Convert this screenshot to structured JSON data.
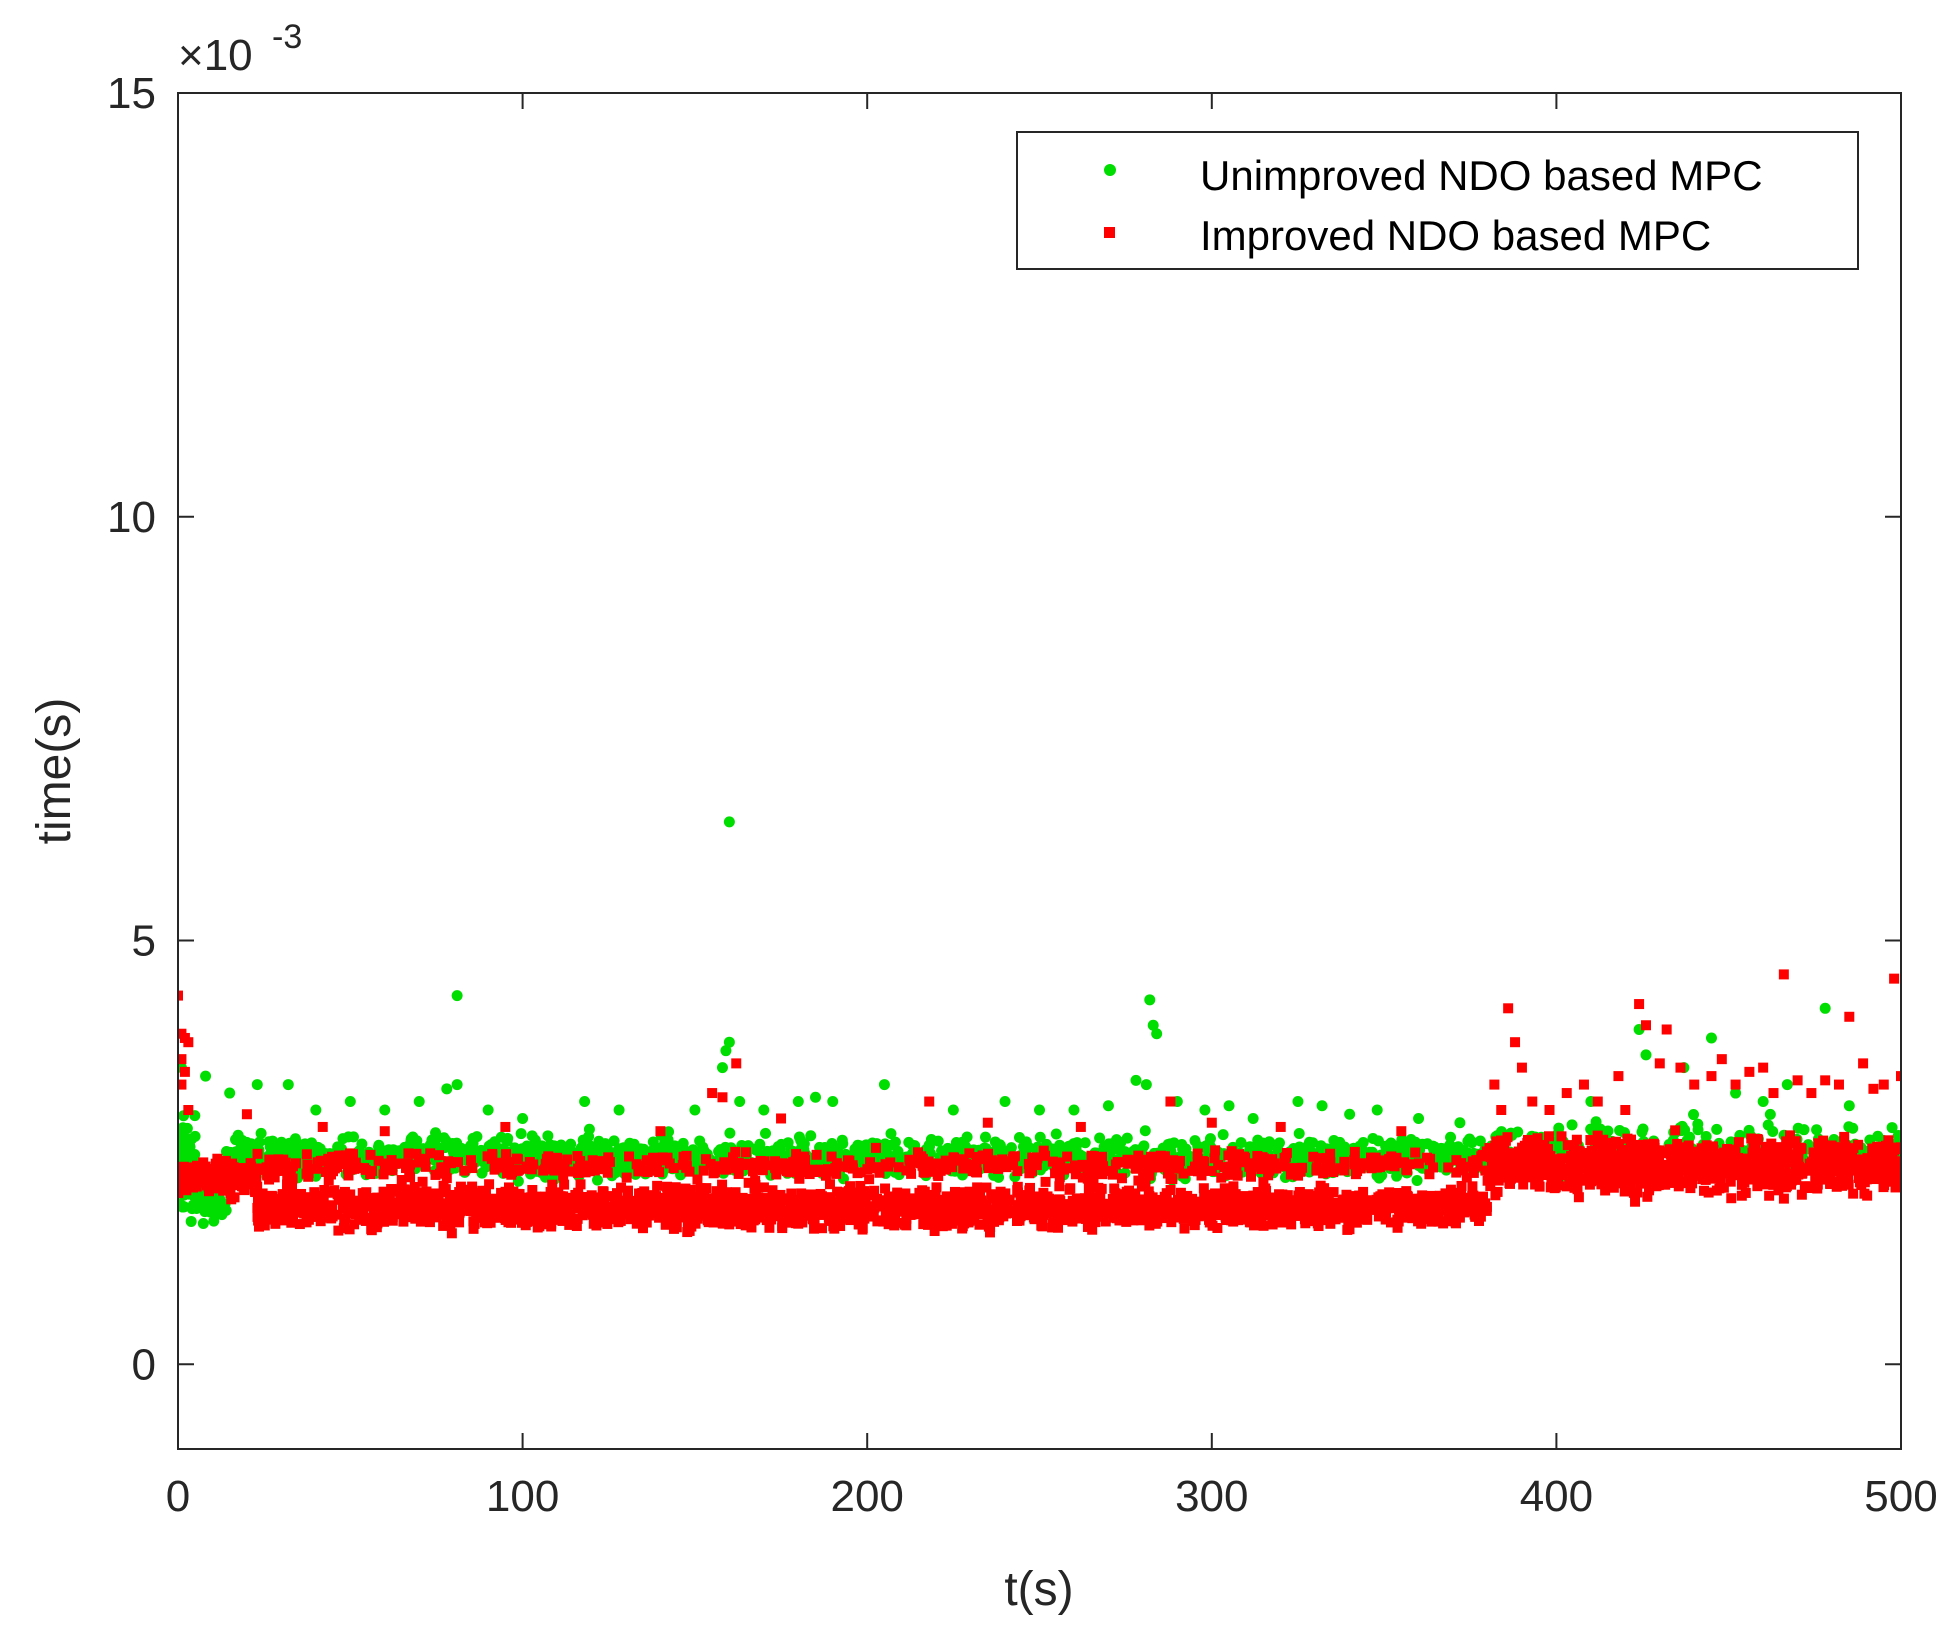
{
  "chart_data": {
    "type": "scatter",
    "xlabel": "t(s)",
    "ylabel": "time(s)",
    "exponent_label": {
      "base": "×10",
      "power": "-3"
    },
    "xlim": [
      0,
      500
    ],
    "ylim": [
      -1,
      15
    ],
    "x_ticks": [
      {
        "value": 0,
        "label": "0"
      },
      {
        "value": 100,
        "label": "100"
      },
      {
        "value": 200,
        "label": "200"
      },
      {
        "value": 300,
        "label": "300"
      },
      {
        "value": 400,
        "label": "400"
      },
      {
        "value": 500,
        "label": "500"
      }
    ],
    "y_ticks": [
      {
        "value": 0,
        "label": "0"
      },
      {
        "value": 5,
        "label": "5"
      },
      {
        "value": 10,
        "label": "10"
      },
      {
        "value": 15,
        "label": "15"
      }
    ],
    "grid": false,
    "legend_position": "top-right",
    "series": [
      {
        "name": "Unimproved NDO based MPC",
        "color": "#00dd00",
        "marker": "circle",
        "segments": [
          {
            "x_range": [
              0,
              5
            ],
            "center": 2.3,
            "spread": 0.55,
            "count": 70
          },
          {
            "x_range": [
              5,
              14
            ],
            "center": 1.95,
            "spread": 0.25,
            "count": 50
          },
          {
            "x_range": [
              14,
              380
            ],
            "center": 2.45,
            "spread": 0.22,
            "count": 1400
          },
          {
            "x_range": [
              380,
              500
            ],
            "center": 2.55,
            "spread": 0.28,
            "count": 220
          }
        ],
        "outliers": [
          [
            1,
            3.5
          ],
          [
            8,
            3.4
          ],
          [
            15,
            3.2
          ],
          [
            23,
            3.3
          ],
          [
            32,
            3.3
          ],
          [
            40,
            3.0
          ],
          [
            50,
            3.1
          ],
          [
            60,
            3.0
          ],
          [
            70,
            3.1
          ],
          [
            78,
            3.25
          ],
          [
            81,
            4.35
          ],
          [
            81,
            3.3
          ],
          [
            90,
            3.0
          ],
          [
            100,
            2.9
          ],
          [
            118,
            3.1
          ],
          [
            128,
            3.0
          ],
          [
            150,
            3.0
          ],
          [
            158,
            3.5
          ],
          [
            159,
            3.7
          ],
          [
            160,
            3.8
          ],
          [
            160,
            6.4
          ],
          [
            163,
            3.1
          ],
          [
            170,
            3.0
          ],
          [
            180,
            3.1
          ],
          [
            185,
            3.15
          ],
          [
            190,
            3.1
          ],
          [
            205,
            3.3
          ],
          [
            225,
            3.0
          ],
          [
            240,
            3.1
          ],
          [
            250,
            3.0
          ],
          [
            260,
            3.0
          ],
          [
            270,
            3.05
          ],
          [
            278,
            3.35
          ],
          [
            281,
            3.3
          ],
          [
            282,
            4.3
          ],
          [
            283,
            4.0
          ],
          [
            284,
            3.9
          ],
          [
            290,
            3.1
          ],
          [
            298,
            3.0
          ],
          [
            305,
            3.05
          ],
          [
            312,
            2.9
          ],
          [
            325,
            3.1
          ],
          [
            332,
            3.05
          ],
          [
            340,
            2.95
          ],
          [
            348,
            3.0
          ],
          [
            360,
            2.9
          ],
          [
            372,
            2.85
          ],
          [
            410,
            3.1
          ],
          [
            424,
            3.95
          ],
          [
            426,
            3.65
          ],
          [
            437,
            3.5
          ],
          [
            445,
            3.85
          ],
          [
            452,
            3.2
          ],
          [
            460,
            3.1
          ],
          [
            467,
            3.3
          ],
          [
            478,
            4.2
          ],
          [
            485,
            3.05
          ]
        ]
      },
      {
        "name": "Improved NDO based MPC",
        "color": "#ff0000",
        "marker": "square",
        "segments": [
          {
            "x_range": [
              0,
              23
            ],
            "center": 2.2,
            "spread": 0.2,
            "count": 140
          },
          {
            "x_range": [
              23,
              380
            ],
            "center": 1.85,
            "spread": 0.22,
            "count": 2400
          },
          {
            "x_range": [
              23,
              380
            ],
            "center": 2.35,
            "spread": 0.15,
            "count": 600
          },
          {
            "x_range": [
              380,
              500
            ],
            "center": 2.35,
            "spread": 0.3,
            "count": 900
          }
        ],
        "outliers": [
          [
            0,
            4.35
          ],
          [
            1,
            3.9
          ],
          [
            2,
            3.85
          ],
          [
            3,
            3.8
          ],
          [
            1,
            3.6
          ],
          [
            2,
            3.45
          ],
          [
            1,
            3.3
          ],
          [
            3,
            3.0
          ],
          [
            20,
            2.95
          ],
          [
            42,
            2.8
          ],
          [
            60,
            2.75
          ],
          [
            95,
            2.8
          ],
          [
            140,
            2.75
          ],
          [
            155,
            3.2
          ],
          [
            158,
            3.15
          ],
          [
            162,
            3.55
          ],
          [
            175,
            2.9
          ],
          [
            218,
            3.1
          ],
          [
            235,
            2.85
          ],
          [
            262,
            2.8
          ],
          [
            288,
            3.1
          ],
          [
            300,
            2.85
          ],
          [
            320,
            2.8
          ],
          [
            355,
            2.75
          ],
          [
            382,
            3.3
          ],
          [
            384,
            3.0
          ],
          [
            386,
            4.2
          ],
          [
            388,
            3.8
          ],
          [
            390,
            3.5
          ],
          [
            393,
            3.1
          ],
          [
            398,
            3.0
          ],
          [
            403,
            3.2
          ],
          [
            408,
            3.3
          ],
          [
            412,
            3.1
          ],
          [
            418,
            3.4
          ],
          [
            420,
            3.0
          ],
          [
            424,
            4.25
          ],
          [
            426,
            4.0
          ],
          [
            430,
            3.55
          ],
          [
            432,
            3.95
          ],
          [
            436,
            3.5
          ],
          [
            440,
            3.3
          ],
          [
            445,
            3.4
          ],
          [
            448,
            3.6
          ],
          [
            452,
            3.3
          ],
          [
            456,
            3.45
          ],
          [
            460,
            3.5
          ],
          [
            463,
            3.2
          ],
          [
            466,
            4.6
          ],
          [
            470,
            3.35
          ],
          [
            474,
            3.2
          ],
          [
            478,
            3.35
          ],
          [
            482,
            3.3
          ],
          [
            485,
            4.1
          ],
          [
            489,
            3.55
          ],
          [
            492,
            3.25
          ],
          [
            495,
            3.3
          ],
          [
            498,
            4.55
          ],
          [
            500,
            3.4
          ]
        ]
      }
    ]
  }
}
